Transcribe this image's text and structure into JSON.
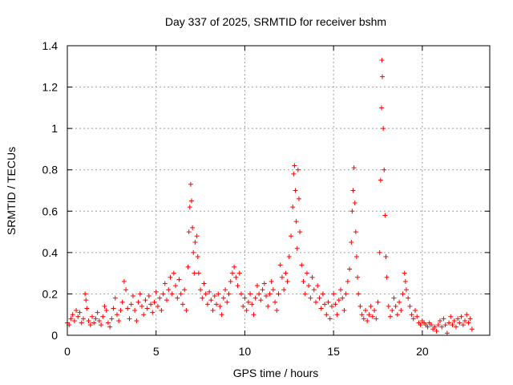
{
  "chart_data": {
    "type": "scatter",
    "title": "Day 337 of 2025, SRMTID for receiver bshm",
    "xlabel": "GPS time / hours",
    "ylabel": "SRMTID / TECUs",
    "xlim": [
      0,
      23.8
    ],
    "ylim": [
      0,
      1.4
    ],
    "xticks": [
      0,
      5,
      10,
      15,
      20
    ],
    "xtick_labels": [
      "0",
      "5",
      "10",
      "15",
      "20"
    ],
    "yticks": [
      0,
      0.2,
      0.4,
      0.6,
      0.8,
      1.0,
      1.2,
      1.4
    ],
    "ytick_labels": [
      "0",
      "0.2",
      "0.4",
      "0.6",
      "0.8",
      "1",
      "1.2",
      "1.4"
    ],
    "grid": true,
    "marker": "plus",
    "color": "#ff0000",
    "series": [
      {
        "name": "SRMTID",
        "points": [
          [
            0.0,
            0.06
          ],
          [
            0.1,
            0.05
          ],
          [
            0.2,
            0.08
          ],
          [
            0.3,
            0.1
          ],
          [
            0.4,
            0.07
          ],
          [
            0.5,
            0.12
          ],
          [
            0.6,
            0.09
          ],
          [
            0.7,
            0.11
          ],
          [
            0.8,
            0.06
          ],
          [
            0.9,
            0.08
          ],
          [
            1.0,
            0.2
          ],
          [
            1.05,
            0.17
          ],
          [
            1.1,
            0.13
          ],
          [
            1.2,
            0.07
          ],
          [
            1.3,
            0.05
          ],
          [
            1.4,
            0.09
          ],
          [
            1.5,
            0.06
          ],
          [
            1.6,
            0.08
          ],
          [
            1.7,
            0.11
          ],
          [
            1.8,
            0.07
          ],
          [
            1.9,
            0.05
          ],
          [
            2.0,
            0.09
          ],
          [
            2.1,
            0.14
          ],
          [
            2.2,
            0.12
          ],
          [
            2.3,
            0.06
          ],
          [
            2.4,
            0.04
          ],
          [
            2.5,
            0.08
          ],
          [
            2.6,
            0.13
          ],
          [
            2.7,
            0.18
          ],
          [
            2.8,
            0.1
          ],
          [
            2.9,
            0.07
          ],
          [
            3.0,
            0.12
          ],
          [
            3.1,
            0.16
          ],
          [
            3.2,
            0.26
          ],
          [
            3.3,
            0.22
          ],
          [
            3.4,
            0.13
          ],
          [
            3.5,
            0.08
          ],
          [
            3.6,
            0.15
          ],
          [
            3.7,
            0.19
          ],
          [
            3.8,
            0.12
          ],
          [
            3.9,
            0.07
          ],
          [
            4.0,
            0.16
          ],
          [
            4.1,
            0.2
          ],
          [
            4.2,
            0.14
          ],
          [
            4.3,
            0.1
          ],
          [
            4.4,
            0.17
          ],
          [
            4.5,
            0.13
          ],
          [
            4.6,
            0.19
          ],
          [
            4.7,
            0.15
          ],
          [
            4.8,
            0.11
          ],
          [
            4.9,
            0.16
          ],
          [
            5.0,
            0.21
          ],
          [
            5.1,
            0.14
          ],
          [
            5.2,
            0.18
          ],
          [
            5.3,
            0.12
          ],
          [
            5.4,
            0.2
          ],
          [
            5.5,
            0.25
          ],
          [
            5.6,
            0.17
          ],
          [
            5.7,
            0.22
          ],
          [
            5.8,
            0.28
          ],
          [
            5.9,
            0.2
          ],
          [
            6.0,
            0.3
          ],
          [
            6.1,
            0.24
          ],
          [
            6.2,
            0.18
          ],
          [
            6.3,
            0.27
          ],
          [
            6.4,
            0.2
          ],
          [
            6.5,
            0.15
          ],
          [
            6.6,
            0.22
          ],
          [
            6.7,
            0.12
          ],
          [
            6.8,
            0.33
          ],
          [
            6.85,
            0.5
          ],
          [
            6.9,
            0.62
          ],
          [
            6.95,
            0.73
          ],
          [
            7.0,
            0.65
          ],
          [
            7.05,
            0.52
          ],
          [
            7.1,
            0.4
          ],
          [
            7.15,
            0.3
          ],
          [
            7.2,
            0.45
          ],
          [
            7.3,
            0.48
          ],
          [
            7.35,
            0.38
          ],
          [
            7.4,
            0.3
          ],
          [
            7.5,
            0.22
          ],
          [
            7.6,
            0.18
          ],
          [
            7.7,
            0.25
          ],
          [
            7.8,
            0.2
          ],
          [
            7.9,
            0.15
          ],
          [
            8.0,
            0.21
          ],
          [
            8.1,
            0.17
          ],
          [
            8.2,
            0.12
          ],
          [
            8.3,
            0.19
          ],
          [
            8.4,
            0.15
          ],
          [
            8.5,
            0.2
          ],
          [
            8.6,
            0.14
          ],
          [
            8.7,
            0.1
          ],
          [
            8.8,
            0.18
          ],
          [
            8.9,
            0.22
          ],
          [
            9.0,
            0.16
          ],
          [
            9.1,
            0.2
          ],
          [
            9.2,
            0.26
          ],
          [
            9.3,
            0.3
          ],
          [
            9.4,
            0.33
          ],
          [
            9.5,
            0.28
          ],
          [
            9.6,
            0.24
          ],
          [
            9.7,
            0.3
          ],
          [
            9.8,
            0.2
          ],
          [
            9.9,
            0.14
          ],
          [
            10.0,
            0.18
          ],
          [
            10.1,
            0.12
          ],
          [
            10.2,
            0.16
          ],
          [
            10.3,
            0.2
          ],
          [
            10.4,
            0.15
          ],
          [
            10.5,
            0.1
          ],
          [
            10.6,
            0.18
          ],
          [
            10.7,
            0.24
          ],
          [
            10.8,
            0.2
          ],
          [
            10.9,
            0.17
          ],
          [
            11.0,
            0.22
          ],
          [
            11.1,
            0.25
          ],
          [
            11.2,
            0.19
          ],
          [
            11.3,
            0.14
          ],
          [
            11.4,
            0.2
          ],
          [
            11.5,
            0.26
          ],
          [
            11.6,
            0.22
          ],
          [
            11.7,
            0.16
          ],
          [
            11.8,
            0.12
          ],
          [
            11.9,
            0.2
          ],
          [
            12.0,
            0.34
          ],
          [
            12.1,
            0.28
          ],
          [
            12.2,
            0.22
          ],
          [
            12.3,
            0.3
          ],
          [
            12.4,
            0.26
          ],
          [
            12.5,
            0.38
          ],
          [
            12.6,
            0.48
          ],
          [
            12.7,
            0.62
          ],
          [
            12.75,
            0.78
          ],
          [
            12.8,
            0.82
          ],
          [
            12.85,
            0.7
          ],
          [
            12.9,
            0.55
          ],
          [
            12.95,
            0.42
          ],
          [
            13.0,
            0.8
          ],
          [
            13.05,
            0.66
          ],
          [
            13.1,
            0.5
          ],
          [
            13.2,
            0.34
          ],
          [
            13.3,
            0.26
          ],
          [
            13.4,
            0.2
          ],
          [
            13.5,
            0.3
          ],
          [
            13.6,
            0.24
          ],
          [
            13.7,
            0.18
          ],
          [
            13.8,
            0.28
          ],
          [
            13.9,
            0.22
          ],
          [
            14.0,
            0.16
          ],
          [
            14.1,
            0.24
          ],
          [
            14.2,
            0.18
          ],
          [
            14.3,
            0.13
          ],
          [
            14.4,
            0.2
          ],
          [
            14.5,
            0.15
          ],
          [
            14.6,
            0.1
          ],
          [
            14.7,
            0.16
          ],
          [
            14.8,
            0.08
          ],
          [
            14.9,
            0.14
          ],
          [
            15.0,
            0.2
          ],
          [
            15.1,
            0.15
          ],
          [
            15.2,
            0.1
          ],
          [
            15.3,
            0.17
          ],
          [
            15.4,
            0.22
          ],
          [
            15.5,
            0.18
          ],
          [
            15.6,
            0.12
          ],
          [
            15.7,
            0.2
          ],
          [
            15.8,
            0.26
          ],
          [
            15.9,
            0.32
          ],
          [
            16.0,
            0.45
          ],
          [
            16.05,
            0.6
          ],
          [
            16.1,
            0.7
          ],
          [
            16.15,
            0.81
          ],
          [
            16.2,
            0.64
          ],
          [
            16.25,
            0.5
          ],
          [
            16.3,
            0.38
          ],
          [
            16.35,
            0.28
          ],
          [
            16.4,
            0.2
          ],
          [
            16.5,
            0.14
          ],
          [
            16.6,
            0.1
          ],
          [
            16.7,
            0.08
          ],
          [
            16.8,
            0.12
          ],
          [
            16.9,
            0.07
          ],
          [
            17.0,
            0.1
          ],
          [
            17.1,
            0.14
          ],
          [
            17.2,
            0.09
          ],
          [
            17.3,
            0.12
          ],
          [
            17.4,
            0.08
          ],
          [
            17.5,
            0.16
          ],
          [
            17.6,
            0.4
          ],
          [
            17.65,
            0.75
          ],
          [
            17.7,
            1.1
          ],
          [
            17.72,
            1.33
          ],
          [
            17.75,
            1.25
          ],
          [
            17.8,
            1.0
          ],
          [
            17.85,
            0.8
          ],
          [
            17.9,
            0.58
          ],
          [
            17.95,
            0.38
          ],
          [
            18.0,
            0.28
          ],
          [
            18.1,
            0.14
          ],
          [
            18.2,
            0.09
          ],
          [
            18.3,
            0.12
          ],
          [
            18.4,
            0.18
          ],
          [
            18.5,
            0.14
          ],
          [
            18.6,
            0.1
          ],
          [
            18.7,
            0.16
          ],
          [
            18.8,
            0.12
          ],
          [
            18.9,
            0.2
          ],
          [
            19.0,
            0.3
          ],
          [
            19.05,
            0.26
          ],
          [
            19.1,
            0.22
          ],
          [
            19.2,
            0.18
          ],
          [
            19.3,
            0.14
          ],
          [
            19.4,
            0.1
          ],
          [
            19.5,
            0.08
          ],
          [
            19.6,
            0.12
          ],
          [
            19.7,
            0.09
          ],
          [
            19.8,
            0.06
          ],
          [
            19.9,
            0.05
          ],
          [
            20.0,
            0.07
          ],
          [
            20.1,
            0.06
          ],
          [
            20.2,
            0.05
          ],
          [
            20.3,
            0.04
          ],
          [
            20.4,
            0.06
          ],
          [
            20.5,
            0.05
          ],
          [
            20.6,
            0.03
          ],
          [
            20.7,
            0.04
          ],
          [
            20.8,
            0.02
          ],
          [
            20.9,
            0.05
          ],
          [
            21.0,
            0.07
          ],
          [
            21.1,
            0.04
          ],
          [
            21.2,
            0.08
          ],
          [
            21.3,
            0.05
          ],
          [
            21.4,
            0.01
          ],
          [
            21.5,
            0.06
          ],
          [
            21.6,
            0.09
          ],
          [
            21.7,
            0.05
          ],
          [
            21.8,
            0.07
          ],
          [
            21.9,
            0.04
          ],
          [
            22.0,
            0.08
          ],
          [
            22.1,
            0.06
          ],
          [
            22.2,
            0.09
          ],
          [
            22.3,
            0.05
          ],
          [
            22.4,
            0.07
          ],
          [
            22.5,
            0.1
          ],
          [
            22.6,
            0.06
          ],
          [
            22.7,
            0.08
          ],
          [
            22.8,
            0.03
          ]
        ]
      }
    ]
  }
}
